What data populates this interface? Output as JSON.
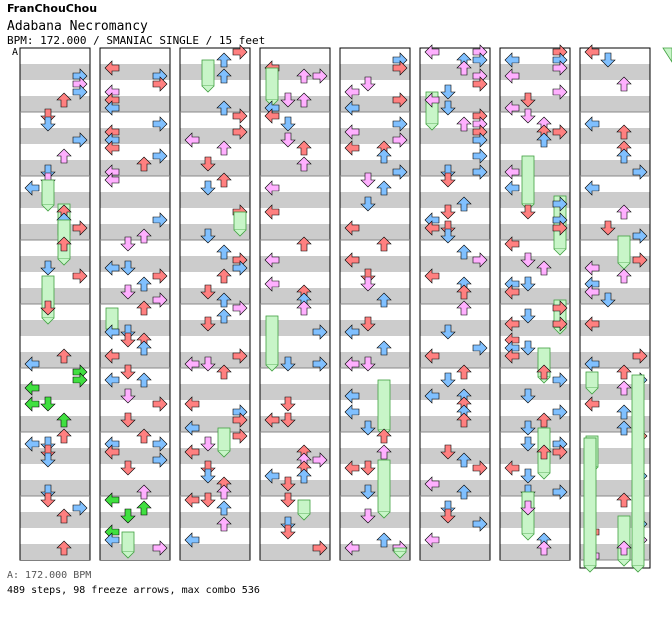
{
  "header": {
    "author": "FranChouChou",
    "title": "Adabana Necromancy",
    "meta": "BPM: 172.000 / SMANIAC SINGLE / 15 feet",
    "column_marker": "A"
  },
  "footer": {
    "bpm_label": "A: 172.000 BPM",
    "stats": "489 steps, 98 freeze arrows, max combo 536"
  },
  "chart": {
    "columns": 9,
    "measures_per_column": 8,
    "lanes": [
      "left",
      "down",
      "up",
      "right"
    ],
    "colors": {
      "quarter": "#ff8080",
      "eighth": "#80c0ff",
      "sixteenth": "#ffb0ff",
      "green": "#40e040",
      "freeze_fill": "#c8f5c8",
      "freeze_border": "#40a040",
      "stripe": "#cccccc",
      "measure_line": "#888888"
    }
  }
}
